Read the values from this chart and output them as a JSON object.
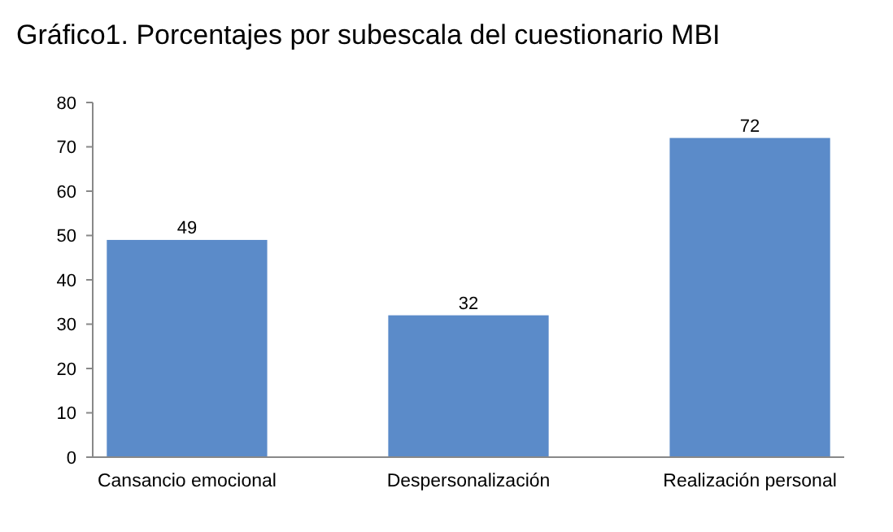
{
  "chart_data": {
    "type": "bar",
    "title": "Gráfico1.  Porcentajes por subescala del cuestionario MBI",
    "categories": [
      "Cansancio emocional",
      "Despersonalización",
      "Realización personal"
    ],
    "values": [
      49,
      32,
      72
    ],
    "color": "#5b8bc9",
    "ylim": [
      0,
      80
    ],
    "yticks": [
      0,
      10,
      20,
      30,
      40,
      50,
      60,
      70,
      80
    ],
    "grid": false,
    "data_labels": true
  }
}
